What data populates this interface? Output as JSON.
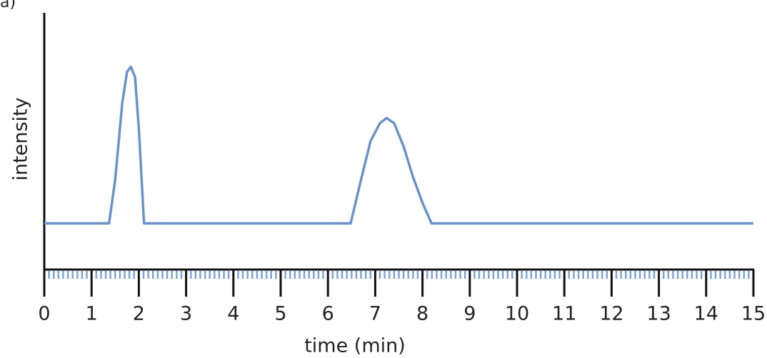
{
  "chart_data": {
    "type": "line",
    "panel_label": "a)",
    "y_label": "intensity",
    "x_label": "time (min)",
    "xlim": [
      0,
      15
    ],
    "xticks": [
      0,
      1,
      2,
      3,
      4,
      5,
      6,
      7,
      8,
      9,
      10,
      11,
      12,
      13,
      14,
      15
    ],
    "minor_ticks_per_major": 10,
    "minor_tick_color": "#7da3d6",
    "ylim": [
      0,
      100
    ],
    "series": [
      {
        "color": "#6a93c8",
        "x": [
          0,
          1.37,
          1.5,
          1.65,
          1.75,
          1.83,
          1.92,
          2.0,
          2.11,
          6.48,
          6.7,
          6.9,
          7.1,
          7.24,
          7.4,
          7.6,
          7.8,
          8.0,
          8.19,
          15
        ],
        "values": [
          18,
          18,
          35,
          65,
          77,
          79,
          75,
          55,
          18,
          18,
          35,
          50,
          57,
          59,
          57,
          48,
          36,
          26,
          18,
          18
        ]
      }
    ]
  }
}
